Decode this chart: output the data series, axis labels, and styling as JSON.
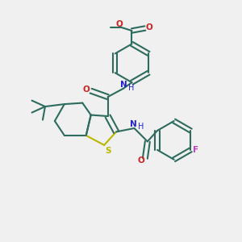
{
  "background_color": "#f0f0f0",
  "bond_color": "#2d6b5e",
  "sulfur_color": "#b8b800",
  "nitrogen_color": "#2222cc",
  "oxygen_color": "#cc2222",
  "fluorine_color": "#bb44bb",
  "figsize": [
    3.0,
    3.0
  ],
  "dpi": 100,
  "xlim": [
    0,
    1
  ],
  "ylim": [
    0,
    1
  ]
}
